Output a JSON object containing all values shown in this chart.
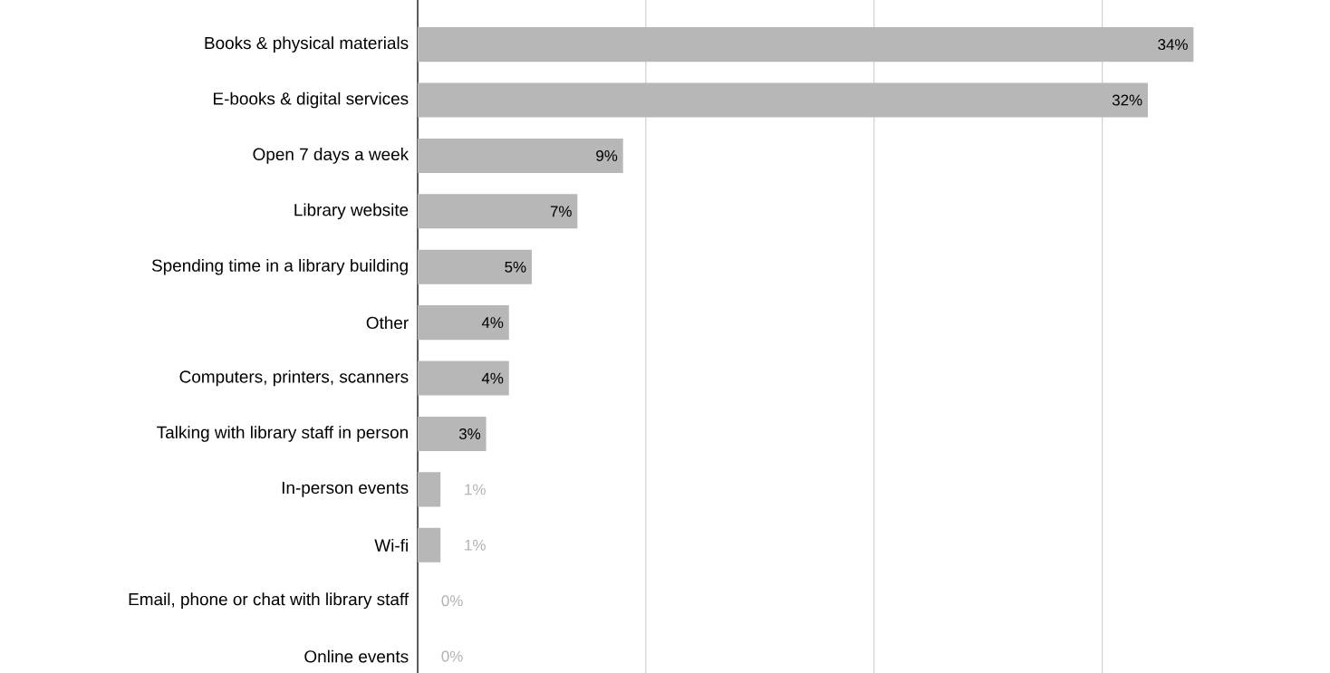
{
  "chart_data": {
    "type": "bar",
    "orientation": "horizontal",
    "categories": [
      "Books & physical materials",
      "E-books & digital services",
      "Open 7 days a week",
      "Library website",
      "Spending time in a library building",
      "Other",
      "Computers, printers, scanners",
      "Talking with library staff in person",
      "In-person events",
      "Wi-fi",
      "Email, phone or chat with library staff",
      "Online events"
    ],
    "values": [
      34,
      32,
      9,
      7,
      5,
      4,
      4,
      3,
      1,
      1,
      0,
      0
    ],
    "value_labels": [
      "34%",
      "32%",
      "9%",
      "7%",
      "5%",
      "4%",
      "4%",
      "3%",
      "1%",
      "1%",
      "0%",
      "0%"
    ],
    "color": "#b7b7b7",
    "grid": "x",
    "tick_labels": "y"
  }
}
